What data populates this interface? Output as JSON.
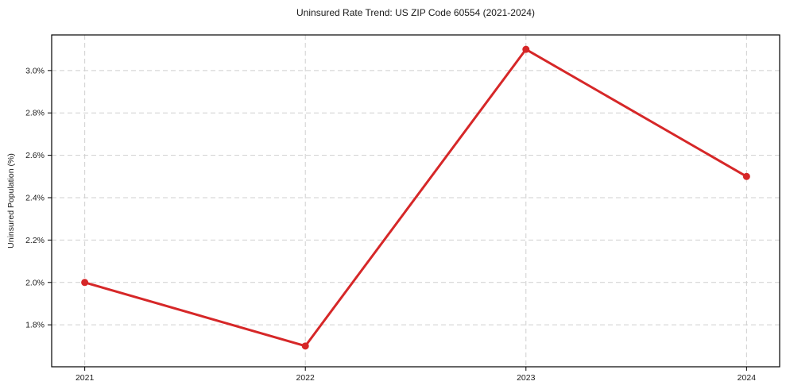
{
  "chart_data": {
    "type": "line",
    "title": "Uninsured Rate Trend: US ZIP Code 60554 (2021-2024)",
    "xlabel": "",
    "ylabel": "Uninsured Population (%)",
    "x": [
      2021,
      2022,
      2023,
      2024
    ],
    "values": [
      2.0,
      1.7,
      3.1,
      2.5
    ],
    "series_name": "Uninsured rate",
    "line_color": "#d62728",
    "marker": "circle",
    "grid": "both-dashed",
    "grid_color": "#cfcfcf",
    "legend": "none",
    "xlim": [
      2020.85,
      2024.15
    ],
    "ylim": [
      1.602,
      3.168
    ],
    "xticks": [
      {
        "v": 2021,
        "label": "2021"
      },
      {
        "v": 2022,
        "label": "2022"
      },
      {
        "v": 2023,
        "label": "2023"
      },
      {
        "v": 2024,
        "label": "2024"
      }
    ],
    "yticks": [
      {
        "v": 1.8,
        "label": "1.8%"
      },
      {
        "v": 2.0,
        "label": "2.0%"
      },
      {
        "v": 2.2,
        "label": "2.2%"
      },
      {
        "v": 2.4,
        "label": "2.4%"
      },
      {
        "v": 2.6,
        "label": "2.6%"
      },
      {
        "v": 2.8,
        "label": "2.8%"
      },
      {
        "v": 3.0,
        "label": "3.0%"
      }
    ]
  }
}
